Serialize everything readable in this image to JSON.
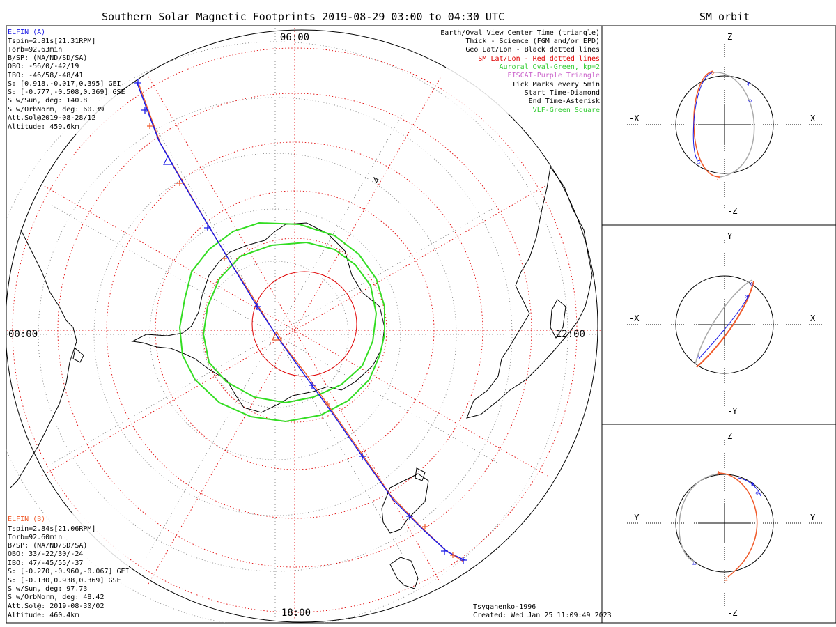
{
  "title": "Southern Solar Magnetic Footprints 2019-08-29 03:00 to 04:30 UTC",
  "orbit_title": "SM orbit",
  "time_labels": {
    "top": "06:00",
    "left": "00:00",
    "right": "12:00",
    "bottom": "18:00"
  },
  "elfin_a": {
    "name": "ELFIN (A)",
    "color": "#1a1ae6",
    "lines": [
      "Tspin=2.81s[21.31RPM]",
      "Torb=92.63min",
      "B/SP: (NA/ND/SD/SA)",
      "OBO: -56/0/-42/19",
      "IBO: -46/58/-48/41",
      "S: [0.918,-0.017,0.395] GEI",
      "S: [-0.777,-0.508,0.369] GSE",
      "S w/Sun, deg: 140.8",
      "S w/OrbNorm, deg: 60.39",
      "Att.Sol@2019-08-28/12",
      "Altitude: 459.6km"
    ]
  },
  "elfin_b": {
    "name": "ELFIN (B)",
    "color": "#f05a2a",
    "lines": [
      "Tspin=2.84s[21.06RPM]",
      "Torb=92.60min",
      "B/SP: (NA/ND/SD/SA)",
      "OBO: 33/-22/30/-24",
      "IBO: 47/-45/55/-37",
      "S: [-0.270,-0.960,-0.067] GEI",
      "S: [-0.130,0.938,0.369] GSE",
      "S w/Sun, deg: 97.73",
      "S w/OrbNorm, deg: 48.42",
      "Att.Sol@: 2019-08-30/02",
      "Altitude: 460.4km"
    ]
  },
  "legend": [
    {
      "text": "Earth/Oval View Center Time (triangle)",
      "color": "#000000"
    },
    {
      "text": "Thick - Science (FGM and/or EPD)",
      "color": "#000000"
    },
    {
      "text": "Geo Lat/Lon - Black dotted lines",
      "color": "#000000"
    },
    {
      "text": "SM Lat/Lon - Red dotted lines",
      "color": "#e00000"
    },
    {
      "text": "Auroral Oval-Green, kp=2",
      "color": "#33cc33"
    },
    {
      "text": "EISCAT-Purple Triangle",
      "color": "#cc66cc"
    },
    {
      "text": "Tick Marks every 5min",
      "color": "#000000"
    },
    {
      "text": "Start Time-Diamond",
      "color": "#000000"
    },
    {
      "text": "End Time-Asterisk",
      "color": "#000000"
    },
    {
      "text": "VLF-Green Square",
      "color": "#33cc33"
    }
  ],
  "credit": "Tsyganenko-1996",
  "created": "Created: Wed Jan 25 11:09:49 2023",
  "orbit_panels": [
    {
      "top": "Z",
      "bottom": "-Z",
      "left": "-X",
      "right": "X"
    },
    {
      "top": "Y",
      "bottom": "-Y",
      "left": "-X",
      "right": "X"
    },
    {
      "top": "Z",
      "bottom": "-Z",
      "left": "-Y",
      "right": "Y"
    }
  ],
  "colors": {
    "oval": "#33dd22",
    "sm_grid": "#e00000",
    "track_a": "#1a1ae6",
    "track_b": "#f05a2a",
    "orbit_gray": "#aaaaaa"
  }
}
